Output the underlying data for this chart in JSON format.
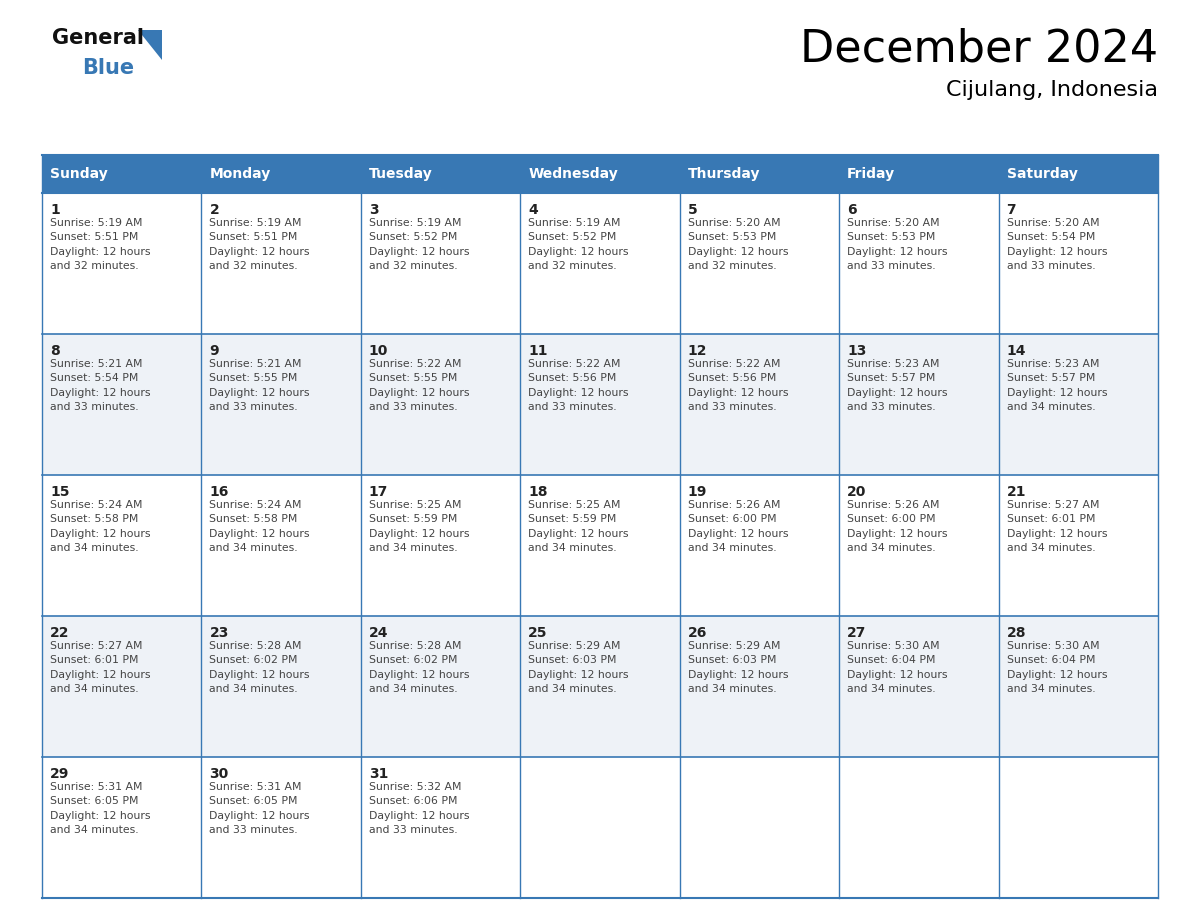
{
  "title": "December 2024",
  "subtitle": "Cijulang, Indonesia",
  "header_color": "#3878b4",
  "header_text_color": "#ffffff",
  "cell_bg_color": "#ffffff",
  "alt_cell_bg_color": "#eef2f7",
  "border_color": "#3878b4",
  "row_divider_color": "#3878b4",
  "day_headers": [
    "Sunday",
    "Monday",
    "Tuesday",
    "Wednesday",
    "Thursday",
    "Friday",
    "Saturday"
  ],
  "days": [
    {
      "day": 1,
      "col": 0,
      "row": 0,
      "sunrise": "5:19 AM",
      "sunset": "5:51 PM",
      "daylight": "12 hours and 32 minutes."
    },
    {
      "day": 2,
      "col": 1,
      "row": 0,
      "sunrise": "5:19 AM",
      "sunset": "5:51 PM",
      "daylight": "12 hours and 32 minutes."
    },
    {
      "day": 3,
      "col": 2,
      "row": 0,
      "sunrise": "5:19 AM",
      "sunset": "5:52 PM",
      "daylight": "12 hours and 32 minutes."
    },
    {
      "day": 4,
      "col": 3,
      "row": 0,
      "sunrise": "5:19 AM",
      "sunset": "5:52 PM",
      "daylight": "12 hours and 32 minutes."
    },
    {
      "day": 5,
      "col": 4,
      "row": 0,
      "sunrise": "5:20 AM",
      "sunset": "5:53 PM",
      "daylight": "12 hours and 32 minutes."
    },
    {
      "day": 6,
      "col": 5,
      "row": 0,
      "sunrise": "5:20 AM",
      "sunset": "5:53 PM",
      "daylight": "12 hours and 33 minutes."
    },
    {
      "day": 7,
      "col": 6,
      "row": 0,
      "sunrise": "5:20 AM",
      "sunset": "5:54 PM",
      "daylight": "12 hours and 33 minutes."
    },
    {
      "day": 8,
      "col": 0,
      "row": 1,
      "sunrise": "5:21 AM",
      "sunset": "5:54 PM",
      "daylight": "12 hours and 33 minutes."
    },
    {
      "day": 9,
      "col": 1,
      "row": 1,
      "sunrise": "5:21 AM",
      "sunset": "5:55 PM",
      "daylight": "12 hours and 33 minutes."
    },
    {
      "day": 10,
      "col": 2,
      "row": 1,
      "sunrise": "5:22 AM",
      "sunset": "5:55 PM",
      "daylight": "12 hours and 33 minutes."
    },
    {
      "day": 11,
      "col": 3,
      "row": 1,
      "sunrise": "5:22 AM",
      "sunset": "5:56 PM",
      "daylight": "12 hours and 33 minutes."
    },
    {
      "day": 12,
      "col": 4,
      "row": 1,
      "sunrise": "5:22 AM",
      "sunset": "5:56 PM",
      "daylight": "12 hours and 33 minutes."
    },
    {
      "day": 13,
      "col": 5,
      "row": 1,
      "sunrise": "5:23 AM",
      "sunset": "5:57 PM",
      "daylight": "12 hours and 33 minutes."
    },
    {
      "day": 14,
      "col": 6,
      "row": 1,
      "sunrise": "5:23 AM",
      "sunset": "5:57 PM",
      "daylight": "12 hours and 34 minutes."
    },
    {
      "day": 15,
      "col": 0,
      "row": 2,
      "sunrise": "5:24 AM",
      "sunset": "5:58 PM",
      "daylight": "12 hours and 34 minutes."
    },
    {
      "day": 16,
      "col": 1,
      "row": 2,
      "sunrise": "5:24 AM",
      "sunset": "5:58 PM",
      "daylight": "12 hours and 34 minutes."
    },
    {
      "day": 17,
      "col": 2,
      "row": 2,
      "sunrise": "5:25 AM",
      "sunset": "5:59 PM",
      "daylight": "12 hours and 34 minutes."
    },
    {
      "day": 18,
      "col": 3,
      "row": 2,
      "sunrise": "5:25 AM",
      "sunset": "5:59 PM",
      "daylight": "12 hours and 34 minutes."
    },
    {
      "day": 19,
      "col": 4,
      "row": 2,
      "sunrise": "5:26 AM",
      "sunset": "6:00 PM",
      "daylight": "12 hours and 34 minutes."
    },
    {
      "day": 20,
      "col": 5,
      "row": 2,
      "sunrise": "5:26 AM",
      "sunset": "6:00 PM",
      "daylight": "12 hours and 34 minutes."
    },
    {
      "day": 21,
      "col": 6,
      "row": 2,
      "sunrise": "5:27 AM",
      "sunset": "6:01 PM",
      "daylight": "12 hours and 34 minutes."
    },
    {
      "day": 22,
      "col": 0,
      "row": 3,
      "sunrise": "5:27 AM",
      "sunset": "6:01 PM",
      "daylight": "12 hours and 34 minutes."
    },
    {
      "day": 23,
      "col": 1,
      "row": 3,
      "sunrise": "5:28 AM",
      "sunset": "6:02 PM",
      "daylight": "12 hours and 34 minutes."
    },
    {
      "day": 24,
      "col": 2,
      "row": 3,
      "sunrise": "5:28 AM",
      "sunset": "6:02 PM",
      "daylight": "12 hours and 34 minutes."
    },
    {
      "day": 25,
      "col": 3,
      "row": 3,
      "sunrise": "5:29 AM",
      "sunset": "6:03 PM",
      "daylight": "12 hours and 34 minutes."
    },
    {
      "day": 26,
      "col": 4,
      "row": 3,
      "sunrise": "5:29 AM",
      "sunset": "6:03 PM",
      "daylight": "12 hours and 34 minutes."
    },
    {
      "day": 27,
      "col": 5,
      "row": 3,
      "sunrise": "5:30 AM",
      "sunset": "6:04 PM",
      "daylight": "12 hours and 34 minutes."
    },
    {
      "day": 28,
      "col": 6,
      "row": 3,
      "sunrise": "5:30 AM",
      "sunset": "6:04 PM",
      "daylight": "12 hours and 34 minutes."
    },
    {
      "day": 29,
      "col": 0,
      "row": 4,
      "sunrise": "5:31 AM",
      "sunset": "6:05 PM",
      "daylight": "12 hours and 34 minutes."
    },
    {
      "day": 30,
      "col": 1,
      "row": 4,
      "sunrise": "5:31 AM",
      "sunset": "6:05 PM",
      "daylight": "12 hours and 33 minutes."
    },
    {
      "day": 31,
      "col": 2,
      "row": 4,
      "sunrise": "5:32 AM",
      "sunset": "6:06 PM",
      "daylight": "12 hours and 33 minutes."
    }
  ],
  "num_rows": 5,
  "num_cols": 7,
  "logo_text_general": "General",
  "logo_text_blue": "Blue",
  "logo_triangle_color": "#3878b4",
  "text_color": "#222222",
  "cell_text_color": "#444444",
  "title_fontsize": 32,
  "subtitle_fontsize": 16,
  "header_fontsize": 10,
  "day_num_fontsize": 10,
  "cell_fontsize": 7.8
}
